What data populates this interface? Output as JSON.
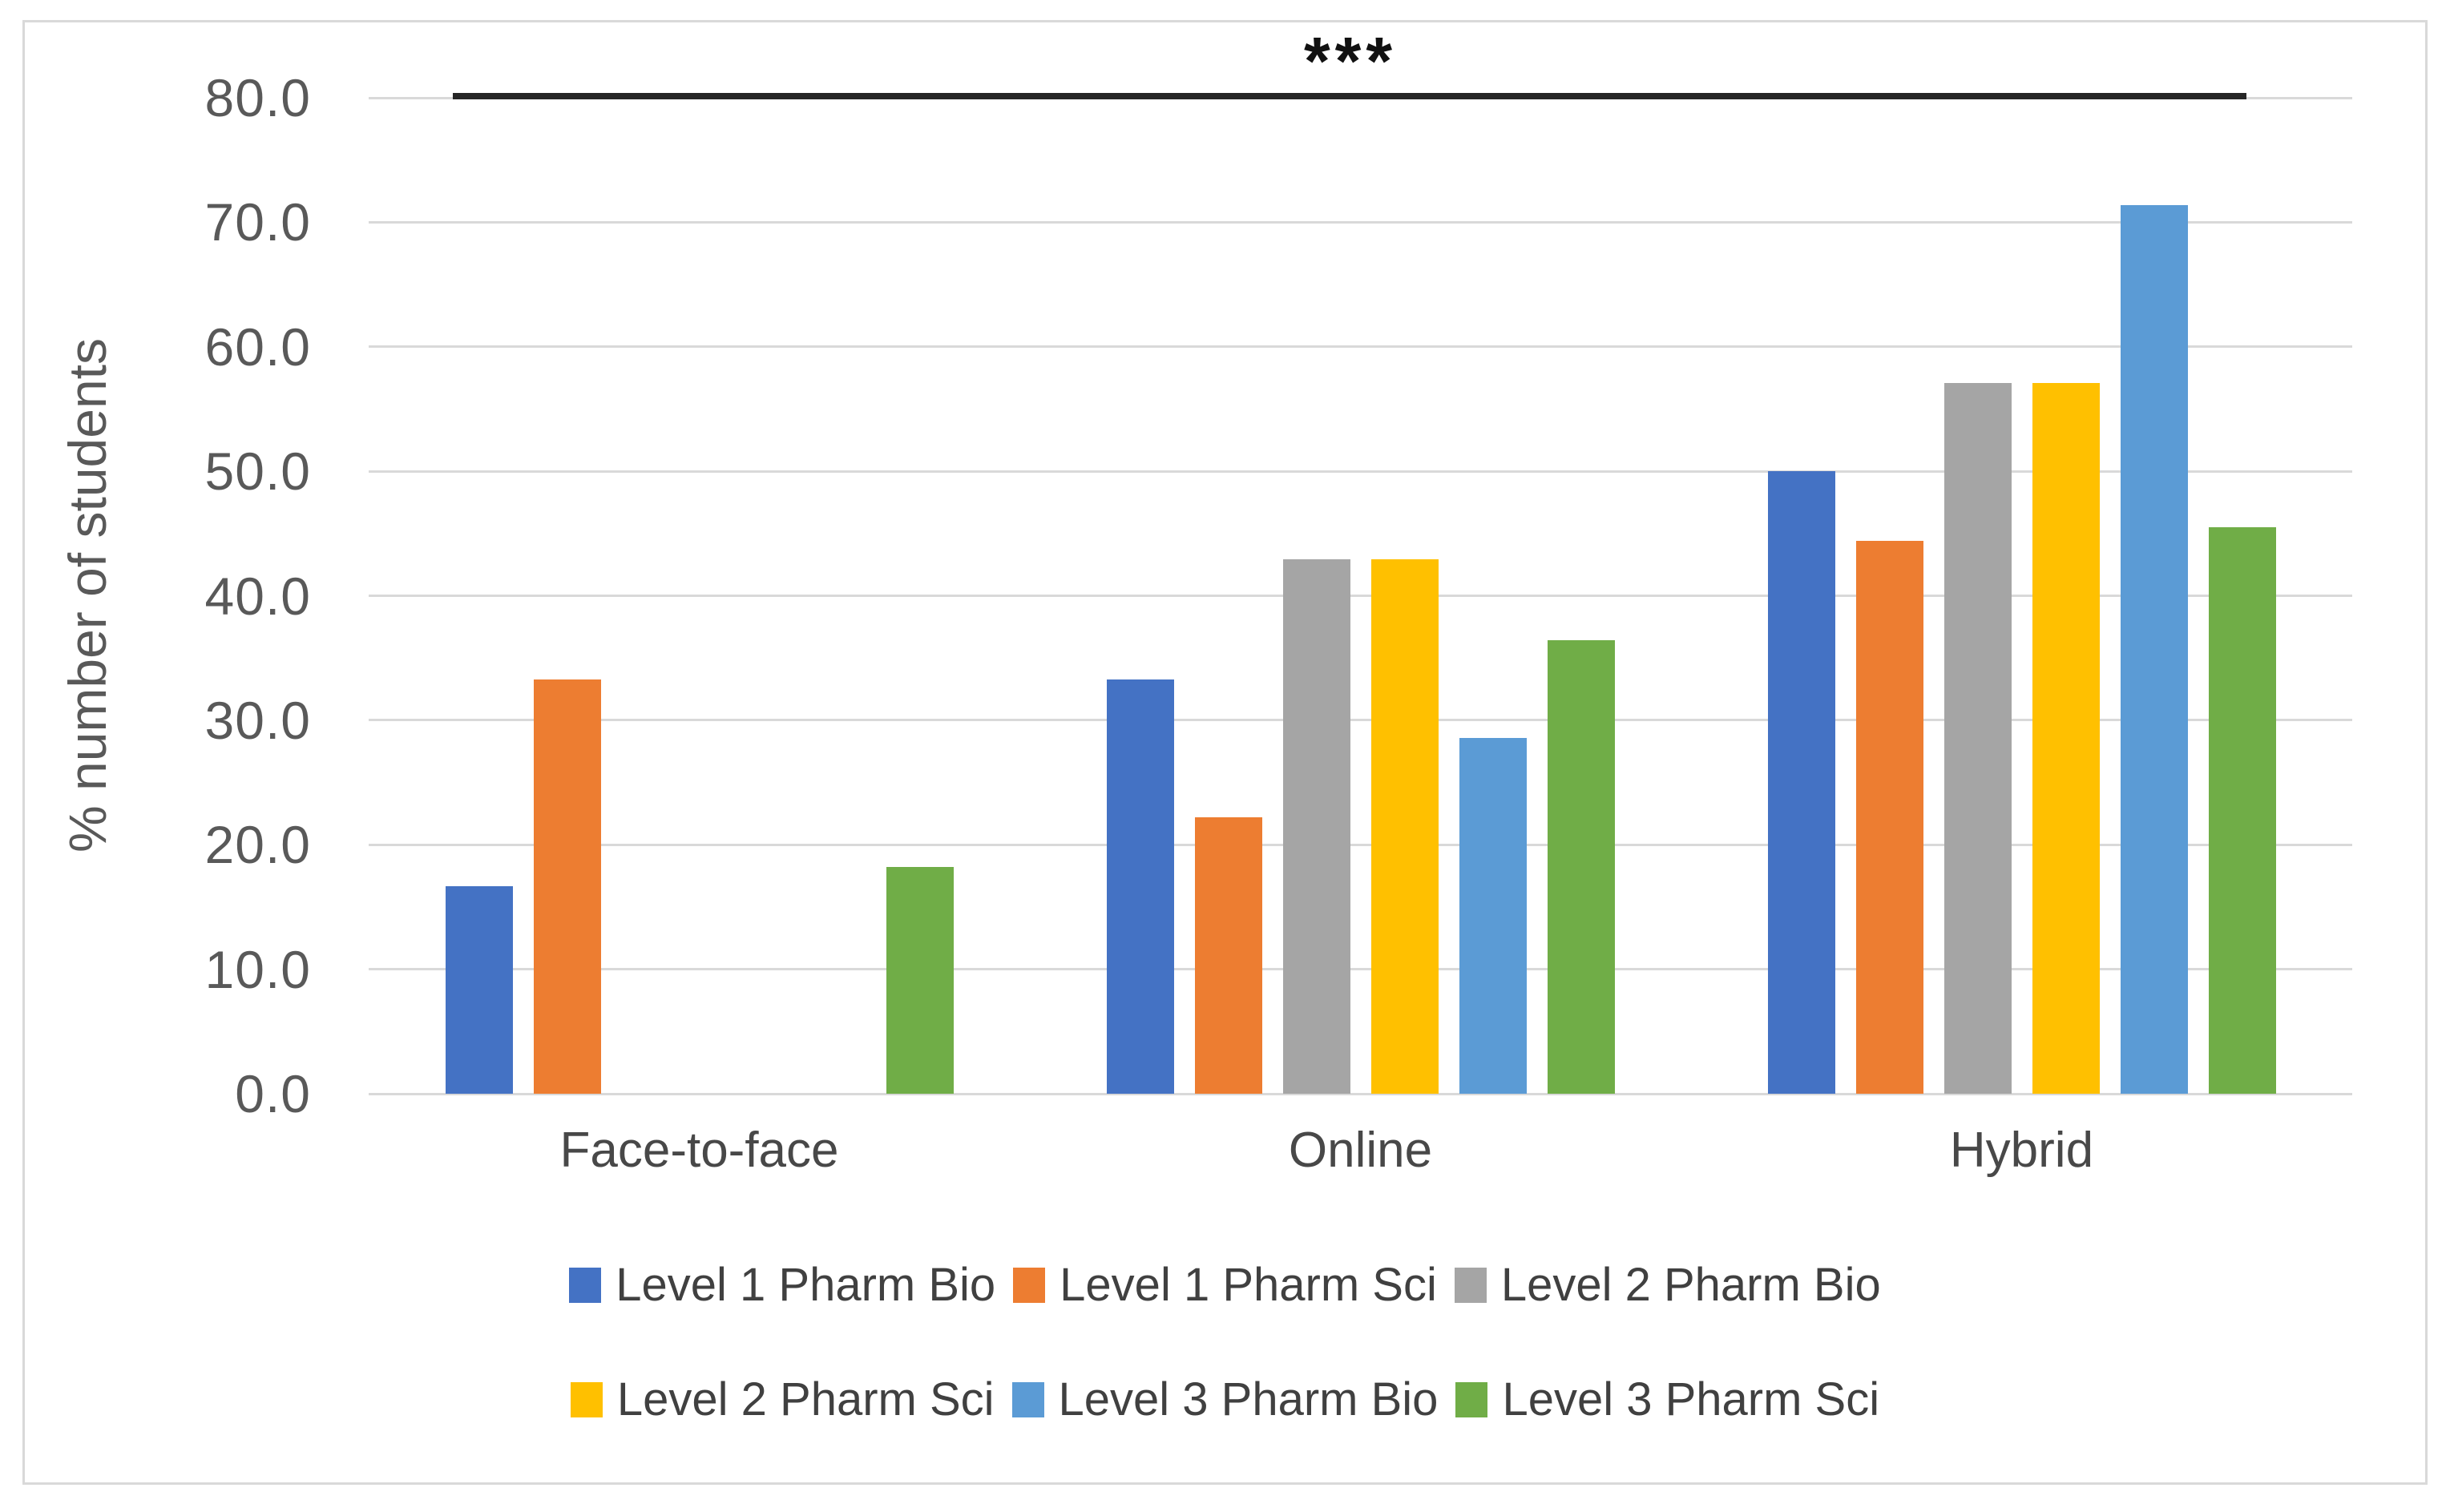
{
  "chart_data": {
    "type": "bar",
    "title": "",
    "ylabel": "% number of students",
    "xlabel": "",
    "ylim": [
      0,
      80
    ],
    "ytick_step": 10,
    "ytick_labels": [
      "80.0",
      "70.0",
      "60.0",
      "50.0",
      "40.0",
      "30.0",
      "20.0",
      "10.0",
      "0.0"
    ],
    "grid": true,
    "gridline_color": "#D9D9D9",
    "categories": [
      "Face-to-face",
      "Online",
      "Hybrid"
    ],
    "series": [
      {
        "name": "Level 1 Pharm Bio",
        "color": "#4472C4",
        "values": [
          16.7,
          33.3,
          50.0
        ]
      },
      {
        "name": "Level 1 Pharm Sci",
        "color": "#ED7D31",
        "values": [
          33.3,
          22.2,
          44.4
        ]
      },
      {
        "name": "Level 2 Pharm Bio",
        "color": "#A5A5A5",
        "values": [
          0,
          42.9,
          57.1
        ]
      },
      {
        "name": "Level 2 Pharm Sci",
        "color": "#FFC000",
        "values": [
          0,
          42.9,
          57.1
        ]
      },
      {
        "name": "Level 3 Pharm Bio",
        "color": "#5B9BD5",
        "values": [
          0,
          28.6,
          71.4
        ]
      },
      {
        "name": "Level 3 Pharm Sci",
        "color": "#70AD47",
        "values": [
          18.2,
          36.4,
          45.5
        ]
      }
    ],
    "legend_position": "bottom",
    "legend_rows": [
      [
        0,
        1,
        2
      ],
      [
        3,
        4,
        5
      ]
    ],
    "annotation": {
      "text": "***",
      "significance_line": true,
      "line_color": "#262626"
    }
  }
}
